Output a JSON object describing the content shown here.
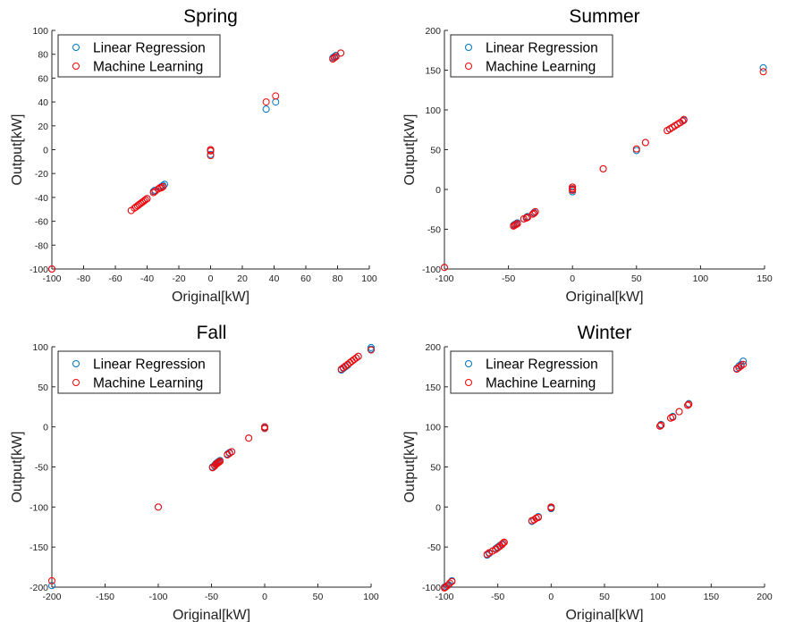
{
  "figure": {
    "legend_position": "top-left",
    "grid": false
  },
  "chart_data": [
    {
      "type": "scatter",
      "title": "Spring",
      "xlabel": "Original[kW]",
      "ylabel": "Output[kW]",
      "xlim": [
        -100,
        100
      ],
      "ylim": [
        -100,
        100
      ],
      "xticks": [
        -100,
        -80,
        -60,
        -40,
        -20,
        0,
        20,
        40,
        60,
        80,
        100
      ],
      "yticks": [
        -100,
        -80,
        -60,
        -40,
        -20,
        0,
        20,
        40,
        60,
        80,
        100
      ],
      "series": [
        {
          "name": "Linear Regression",
          "color": "#0072BD",
          "points": [
            [
              -100,
              -100
            ],
            [
              -50,
              -51
            ],
            [
              -47,
              -48
            ],
            [
              -46,
              -47
            ],
            [
              -45,
              -46
            ],
            [
              -44,
              -45
            ],
            [
              -43,
              -44
            ],
            [
              -42,
              -43
            ],
            [
              -41,
              -42
            ],
            [
              -40,
              -41
            ],
            [
              -36,
              -35
            ],
            [
              -35,
              -34
            ],
            [
              -32,
              -32
            ],
            [
              -31,
              -31
            ],
            [
              -30,
              -30
            ],
            [
              -29,
              -29
            ],
            [
              0,
              0
            ],
            [
              0,
              -1
            ],
            [
              0,
              -4
            ],
            [
              35,
              34
            ],
            [
              41,
              40
            ],
            [
              77,
              77
            ],
            [
              78,
              78
            ],
            [
              79,
              79
            ],
            [
              82,
              81
            ]
          ]
        },
        {
          "name": "Machine Learning",
          "color": "#FF0000",
          "points": [
            [
              -100,
              -100
            ],
            [
              -50,
              -51
            ],
            [
              -48,
              -49
            ],
            [
              -47,
              -48
            ],
            [
              -46,
              -47
            ],
            [
              -45,
              -46
            ],
            [
              -44,
              -45
            ],
            [
              -43,
              -44
            ],
            [
              -42,
              -43
            ],
            [
              -41,
              -42
            ],
            [
              -40,
              -41
            ],
            [
              -36,
              -36
            ],
            [
              -35,
              -35
            ],
            [
              -33,
              -33
            ],
            [
              -32,
              -32
            ],
            [
              -31,
              -32
            ],
            [
              -30,
              -31
            ],
            [
              0,
              0
            ],
            [
              0,
              -1
            ],
            [
              0,
              -5
            ],
            [
              35,
              40
            ],
            [
              41,
              45
            ],
            [
              77,
              76
            ],
            [
              78,
              77
            ],
            [
              79,
              78
            ],
            [
              82,
              81
            ]
          ]
        }
      ]
    },
    {
      "type": "scatter",
      "title": "Summer",
      "xlabel": "Original[kW]",
      "ylabel": "Output[kW]",
      "xlim": [
        -100,
        150
      ],
      "ylim": [
        -100,
        200
      ],
      "xticks": [
        -100,
        -50,
        0,
        50,
        100,
        150
      ],
      "yticks": [
        -100,
        -50,
        0,
        50,
        100,
        150,
        200
      ],
      "series": [
        {
          "name": "Linear Regression",
          "color": "#0072BD",
          "points": [
            [
              -100,
              -98
            ],
            [
              -46,
              -45
            ],
            [
              -45,
              -44
            ],
            [
              -44,
              -43
            ],
            [
              -43,
              -42
            ],
            [
              -38,
              -37
            ],
            [
              -36,
              -35
            ],
            [
              -35,
              -34
            ],
            [
              -31,
              -31
            ],
            [
              -30,
              -29
            ],
            [
              -29,
              -28
            ],
            [
              0,
              3
            ],
            [
              0,
              0
            ],
            [
              0,
              -3
            ],
            [
              24,
              26
            ],
            [
              50,
              49
            ],
            [
              57,
              59
            ],
            [
              74,
              74
            ],
            [
              76,
              76
            ],
            [
              78,
              78
            ],
            [
              80,
              80
            ],
            [
              82,
              82
            ],
            [
              84,
              84
            ],
            [
              86,
              86
            ],
            [
              87,
              87
            ],
            [
              149,
              153
            ]
          ]
        },
        {
          "name": "Machine Learning",
          "color": "#FF0000",
          "points": [
            [
              -100,
              -98
            ],
            [
              -46,
              -46
            ],
            [
              -45,
              -45
            ],
            [
              -44,
              -44
            ],
            [
              -43,
              -43
            ],
            [
              -38,
              -37
            ],
            [
              -36,
              -36
            ],
            [
              -35,
              -35
            ],
            [
              -31,
              -31
            ],
            [
              -30,
              -30
            ],
            [
              -29,
              -28
            ],
            [
              0,
              3
            ],
            [
              0,
              1
            ],
            [
              0,
              -1
            ],
            [
              24,
              26
            ],
            [
              50,
              51
            ],
            [
              57,
              59
            ],
            [
              74,
              74
            ],
            [
              76,
              76
            ],
            [
              78,
              78
            ],
            [
              80,
              80
            ],
            [
              82,
              82
            ],
            [
              84,
              84
            ],
            [
              86,
              86
            ],
            [
              87,
              88
            ],
            [
              149,
              148
            ]
          ]
        }
      ]
    },
    {
      "type": "scatter",
      "title": "Fall",
      "xlabel": "Original[kW]",
      "ylabel": "Output[kW]",
      "xlim": [
        -200,
        100
      ],
      "ylim": [
        -200,
        100
      ],
      "xticks": [
        -200,
        -150,
        -100,
        -50,
        0,
        50,
        100
      ],
      "yticks": [
        -200,
        -150,
        -100,
        -50,
        0,
        50,
        100
      ],
      "series": [
        {
          "name": "Linear Regression",
          "color": "#0072BD",
          "points": [
            [
              -200,
              -198
            ],
            [
              -100,
              -100
            ],
            [
              -49,
              -50
            ],
            [
              -47,
              -48
            ],
            [
              -46,
              -46
            ],
            [
              -45,
              -45
            ],
            [
              -44,
              -44
            ],
            [
              -43,
              -43
            ],
            [
              -42,
              -42
            ],
            [
              -35,
              -34
            ],
            [
              -33,
              -32
            ],
            [
              -31,
              -31
            ],
            [
              -15,
              -14
            ],
            [
              0,
              -1
            ],
            [
              0,
              0
            ],
            [
              72,
              71
            ],
            [
              74,
              73
            ],
            [
              76,
              75
            ],
            [
              78,
              77
            ],
            [
              80,
              80
            ],
            [
              82,
              82
            ],
            [
              84,
              84
            ],
            [
              86,
              86
            ],
            [
              88,
              88
            ],
            [
              100,
              99
            ],
            [
              100,
              97
            ]
          ]
        },
        {
          "name": "Machine Learning",
          "color": "#FF0000",
          "points": [
            [
              -200,
              -192
            ],
            [
              -100,
              -100
            ],
            [
              -49,
              -51
            ],
            [
              -47,
              -49
            ],
            [
              -46,
              -47
            ],
            [
              -45,
              -46
            ],
            [
              -44,
              -45
            ],
            [
              -43,
              -44
            ],
            [
              -42,
              -43
            ],
            [
              -35,
              -35
            ],
            [
              -33,
              -33
            ],
            [
              -31,
              -31
            ],
            [
              -15,
              -14
            ],
            [
              0,
              -2
            ],
            [
              0,
              0
            ],
            [
              72,
              72
            ],
            [
              74,
              74
            ],
            [
              76,
              76
            ],
            [
              78,
              78
            ],
            [
              80,
              80
            ],
            [
              82,
              82
            ],
            [
              84,
              84
            ],
            [
              86,
              86
            ],
            [
              88,
              88
            ],
            [
              100,
              96
            ]
          ]
        }
      ]
    },
    {
      "type": "scatter",
      "title": "Winter",
      "xlabel": "Original[kW]",
      "ylabel": "Output[kW]",
      "xlim": [
        -100,
        200
      ],
      "ylim": [
        -100,
        200
      ],
      "xticks": [
        -100,
        -50,
        0,
        50,
        100,
        150,
        200
      ],
      "yticks": [
        -100,
        -50,
        0,
        50,
        100,
        150,
        200
      ],
      "series": [
        {
          "name": "Linear Regression",
          "color": "#0072BD",
          "points": [
            [
              -100,
              -100
            ],
            [
              -98,
              -99
            ],
            [
              -96,
              -97
            ],
            [
              -93,
              -92
            ],
            [
              -60,
              -60
            ],
            [
              -58,
              -58
            ],
            [
              -55,
              -55
            ],
            [
              -52,
              -52
            ],
            [
              -50,
              -50
            ],
            [
              -48,
              -48
            ],
            [
              -46,
              -46
            ],
            [
              -44,
              -44
            ],
            [
              -18,
              -18
            ],
            [
              -16,
              -16
            ],
            [
              -14,
              -14
            ],
            [
              -12,
              -12
            ],
            [
              0,
              0
            ],
            [
              0,
              -2
            ],
            [
              102,
              101
            ],
            [
              103,
              103
            ],
            [
              112,
              111
            ],
            [
              114,
              113
            ],
            [
              120,
              119
            ],
            [
              128,
              127
            ],
            [
              129,
              129
            ],
            [
              174,
              173
            ],
            [
              176,
              176
            ],
            [
              178,
              178
            ],
            [
              180,
              182
            ]
          ]
        },
        {
          "name": "Machine Learning",
          "color": "#FF0000",
          "points": [
            [
              -100,
              -101
            ],
            [
              -99,
              -100
            ],
            [
              -97,
              -98
            ],
            [
              -95,
              -95
            ],
            [
              -93,
              -93
            ],
            [
              -60,
              -59
            ],
            [
              -58,
              -57
            ],
            [
              -55,
              -55
            ],
            [
              -52,
              -53
            ],
            [
              -50,
              -51
            ],
            [
              -48,
              -49
            ],
            [
              -46,
              -47
            ],
            [
              -45,
              -45
            ],
            [
              -44,
              -44
            ],
            [
              -18,
              -17
            ],
            [
              -16,
              -16
            ],
            [
              -14,
              -14
            ],
            [
              -12,
              -13
            ],
            [
              0,
              0
            ],
            [
              0,
              -1
            ],
            [
              102,
              101
            ],
            [
              103,
              102
            ],
            [
              112,
              111
            ],
            [
              114,
              112
            ],
            [
              120,
              119
            ],
            [
              128,
              127
            ],
            [
              129,
              128
            ],
            [
              174,
              172
            ],
            [
              176,
              174
            ],
            [
              178,
              176
            ],
            [
              180,
              178
            ]
          ]
        }
      ]
    }
  ]
}
